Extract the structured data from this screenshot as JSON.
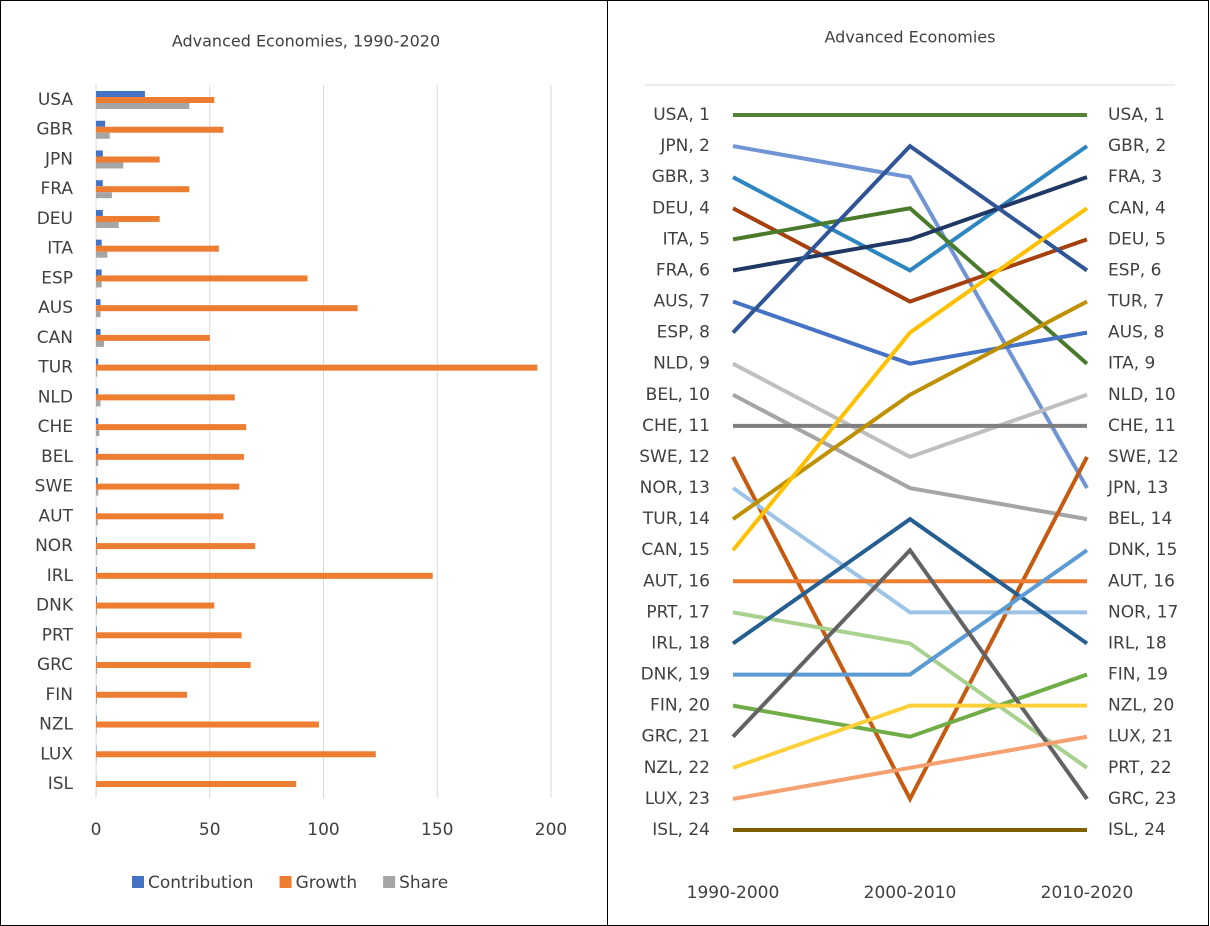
{
  "chart_data": [
    {
      "type": "hbar",
      "title": "Advanced Economies, 1990-2020",
      "categories": [
        "USA",
        "GBR",
        "JPN",
        "FRA",
        "DEU",
        "ITA",
        "ESP",
        "AUS",
        "CAN",
        "TUR",
        "NLD",
        "CHE",
        "BEL",
        "SWE",
        "AUT",
        "NOR",
        "IRL",
        "DNK",
        "PRT",
        "GRC",
        "FIN",
        "NZL",
        "LUX",
        "ISL"
      ],
      "series": [
        {
          "name": "Contribution",
          "color": "#4472c4",
          "values": [
            21.5,
            4,
            3,
            3,
            3,
            2.5,
            2.5,
            2,
            2,
            1,
            1,
            1,
            1,
            0.8,
            0.6,
            0.5,
            0.5,
            0.4,
            0.4,
            0.3,
            0.3,
            0.3,
            0.2,
            0.1
          ]
        },
        {
          "name": "Growth",
          "color": "#ed7d31",
          "values": [
            52,
            56,
            28,
            41,
            28,
            54,
            93,
            115,
            50,
            194,
            61,
            66,
            65,
            63,
            56,
            70,
            148,
            52,
            64,
            68,
            40,
            98,
            123,
            88
          ]
        },
        {
          "name": "Share",
          "color": "#a5a5a5",
          "values": [
            41,
            6,
            12,
            7,
            10,
            5,
            2.5,
            2,
            3.5,
            0.5,
            2,
            1.5,
            1,
            1,
            0.8,
            0.6,
            0.5,
            0.5,
            0.5,
            0.5,
            0.4,
            0.3,
            0.2,
            0.1
          ]
        }
      ],
      "xlim": [
        0,
        200
      ],
      "xticks": [
        0,
        50,
        100,
        150,
        200
      ],
      "grid": true,
      "legend": "bottom"
    },
    {
      "type": "bump",
      "title": "Advanced Economies",
      "categories": [
        "1990-2000",
        "2000-2010",
        "2010-2020"
      ],
      "ylim": [
        1,
        24
      ],
      "invert_y": true,
      "series": [
        {
          "color": "#548235",
          "values": [
            1,
            1,
            1
          ],
          "value_labels": [
            "USA, 1",
            null,
            "USA, 1"
          ]
        },
        {
          "color": "#7094d4",
          "values": [
            2,
            3,
            13
          ],
          "value_labels": [
            "JPN, 2",
            null,
            "JPN, 13"
          ]
        },
        {
          "color": "#2e86c1",
          "values": [
            3,
            6,
            2
          ],
          "value_labels": [
            "GBR, 3",
            null,
            "GBR, 2"
          ]
        },
        {
          "color": "#a5410e",
          "values": [
            4,
            7,
            5
          ],
          "value_labels": [
            "DEU, 4",
            null,
            "DEU, 5"
          ]
        },
        {
          "color": "#4a7a2c",
          "values": [
            5,
            4,
            9
          ],
          "value_labels": [
            "ITA, 5",
            null,
            "ITA, 9"
          ]
        },
        {
          "color": "#203864",
          "values": [
            6,
            5,
            3
          ],
          "value_labels": [
            "FRA, 6",
            null,
            "FRA, 3"
          ]
        },
        {
          "color": "#4472c4",
          "values": [
            7,
            9,
            8
          ],
          "value_labels": [
            "AUS, 7",
            null,
            "AUS, 8"
          ]
        },
        {
          "color": "#2f5597",
          "values": [
            8,
            2,
            6
          ],
          "value_labels": [
            "ESP, 8",
            null,
            "ESP, 6"
          ]
        },
        {
          "color": "#bfbfbf",
          "values": [
            9,
            12,
            10
          ],
          "value_labels": [
            "NLD, 9",
            null,
            "NLD, 10"
          ]
        },
        {
          "color": "#a5a5a5",
          "values": [
            10,
            13,
            14
          ],
          "value_labels": [
            "BEL, 10",
            null,
            "BEL, 14"
          ]
        },
        {
          "color": "#7f7f7f",
          "values": [
            11,
            11,
            11
          ],
          "value_labels": [
            "CHE, 11",
            null,
            "CHE, 11"
          ]
        },
        {
          "color": "#c55a11",
          "values": [
            12,
            23,
            12
          ],
          "value_labels": [
            "SWE, 12",
            null,
            "SWE, 12"
          ]
        },
        {
          "color": "#9dc3e6",
          "values": [
            13,
            17,
            17
          ],
          "value_labels": [
            "NOR, 13",
            null,
            "NOR, 17"
          ]
        },
        {
          "color": "#bf9000",
          "values": [
            14,
            10,
            7
          ],
          "value_labels": [
            "TUR, 14",
            null,
            "TUR, 7"
          ]
        },
        {
          "color": "#ffc000",
          "values": [
            15,
            8,
            4
          ],
          "value_labels": [
            "CAN, 15",
            null,
            "CAN, 4"
          ]
        },
        {
          "color": "#ed7d31",
          "values": [
            16,
            16,
            16
          ],
          "value_labels": [
            "AUT, 16",
            null,
            "AUT, 16"
          ]
        },
        {
          "color": "#a9d18e",
          "values": [
            17,
            18,
            22
          ],
          "value_labels": [
            "PRT, 17",
            null,
            "PRT, 22"
          ]
        },
        {
          "color": "#255e91",
          "values": [
            18,
            14,
            18
          ],
          "value_labels": [
            "IRL, 18",
            null,
            "IRL, 18"
          ]
        },
        {
          "color": "#5b9bd5",
          "values": [
            19,
            19,
            15
          ],
          "value_labels": [
            "DNK, 19",
            null,
            "DNK, 15"
          ]
        },
        {
          "color": "#70ad47",
          "values": [
            20,
            21,
            19
          ],
          "value_labels": [
            "FIN, 20",
            null,
            "FIN, 19"
          ]
        },
        {
          "color": "#636363",
          "values": [
            21,
            15,
            23
          ],
          "value_labels": [
            "GRC, 21",
            null,
            "GRC, 23"
          ]
        },
        {
          "color": "#fcd03b",
          "values": [
            22,
            20,
            20
          ],
          "value_labels": [
            "NZL, 22",
            null,
            "NZL, 20"
          ]
        },
        {
          "color": "#f4a070",
          "values": [
            23,
            22,
            21
          ],
          "value_labels": [
            "LUX, 23",
            null,
            "LUX, 21"
          ]
        },
        {
          "color": "#7f6000",
          "values": [
            24,
            24,
            24
          ],
          "value_labels": [
            "ISL, 24",
            null,
            "ISL, 24"
          ]
        }
      ]
    }
  ]
}
